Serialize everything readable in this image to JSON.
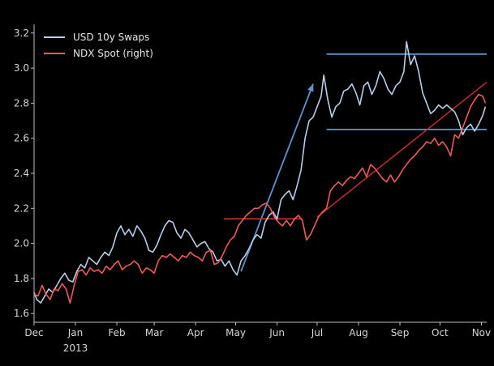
{
  "chart_data": {
    "type": "line",
    "title": "",
    "xlabel": "",
    "ylabel": "",
    "ylim": [
      1.55,
      3.25
    ],
    "xlim": [
      "2012-12-01",
      "2013-11-05"
    ],
    "grid": false,
    "legend_position": "top-left",
    "colors": {
      "background": "#000000",
      "axes": "#bfbfbf",
      "usd": "#b8cde8",
      "ndx": "#ef5a5a",
      "annotation_blue": "#5d95c8",
      "annotation_red": "#c42d2d"
    },
    "y_ticks": [
      "1.6",
      "1.8",
      "2.0",
      "2.2",
      "2.4",
      "2.6",
      "2.8",
      "3.0",
      "3.2"
    ],
    "x_ticks": [
      {
        "date": "2012-12-01",
        "label": "Dec",
        "sublabel": ""
      },
      {
        "date": "2013-01-01",
        "label": "Jan",
        "sublabel": "2013"
      },
      {
        "date": "2013-02-01",
        "label": "Feb",
        "sublabel": ""
      },
      {
        "date": "2013-03-01",
        "label": "Mar",
        "sublabel": ""
      },
      {
        "date": "2013-04-01",
        "label": "Apr",
        "sublabel": ""
      },
      {
        "date": "2013-05-01",
        "label": "May",
        "sublabel": ""
      },
      {
        "date": "2013-06-01",
        "label": "Jun",
        "sublabel": ""
      },
      {
        "date": "2013-07-01",
        "label": "Jul",
        "sublabel": ""
      },
      {
        "date": "2013-08-01",
        "label": "Aug",
        "sublabel": ""
      },
      {
        "date": "2013-09-01",
        "label": "Sep",
        "sublabel": ""
      },
      {
        "date": "2013-10-01",
        "label": "Oct",
        "sublabel": ""
      },
      {
        "date": "2013-11-01",
        "label": "Nov",
        "sublabel": ""
      }
    ],
    "series": [
      {
        "name": "USD 10y Swaps",
        "color": "#b8cde8",
        "points": [
          [
            "2012-12-01",
            1.72
          ],
          [
            "2012-12-03",
            1.68
          ],
          [
            "2012-12-06",
            1.66
          ],
          [
            "2012-12-09",
            1.7
          ],
          [
            "2012-12-12",
            1.74
          ],
          [
            "2012-12-15",
            1.72
          ],
          [
            "2012-12-18",
            1.76
          ],
          [
            "2012-12-21",
            1.8
          ],
          [
            "2012-12-24",
            1.83
          ],
          [
            "2012-12-27",
            1.79
          ],
          [
            "2012-12-30",
            1.78
          ],
          [
            "2013-01-02",
            1.84
          ],
          [
            "2013-01-05",
            1.88
          ],
          [
            "2013-01-08",
            1.86
          ],
          [
            "2013-01-11",
            1.92
          ],
          [
            "2013-01-14",
            1.9
          ],
          [
            "2013-01-17",
            1.88
          ],
          [
            "2013-01-20",
            1.92
          ],
          [
            "2013-01-23",
            1.95
          ],
          [
            "2013-01-26",
            1.93
          ],
          [
            "2013-01-29",
            1.98
          ],
          [
            "2013-02-01",
            2.06
          ],
          [
            "2013-02-04",
            2.1
          ],
          [
            "2013-02-07",
            2.05
          ],
          [
            "2013-02-10",
            2.08
          ],
          [
            "2013-02-13",
            2.04
          ],
          [
            "2013-02-16",
            2.1
          ],
          [
            "2013-02-19",
            2.07
          ],
          [
            "2013-02-22",
            2.03
          ],
          [
            "2013-02-25",
            1.96
          ],
          [
            "2013-02-28",
            1.95
          ],
          [
            "2013-03-03",
            1.99
          ],
          [
            "2013-03-06",
            2.05
          ],
          [
            "2013-03-09",
            2.1
          ],
          [
            "2013-03-12",
            2.13
          ],
          [
            "2013-03-15",
            2.12
          ],
          [
            "2013-03-18",
            2.06
          ],
          [
            "2013-03-21",
            2.03
          ],
          [
            "2013-03-24",
            2.08
          ],
          [
            "2013-03-27",
            2.06
          ],
          [
            "2013-03-30",
            2.02
          ],
          [
            "2013-04-02",
            1.98
          ],
          [
            "2013-04-05",
            2.0
          ],
          [
            "2013-04-08",
            2.01
          ],
          [
            "2013-04-11",
            1.97
          ],
          [
            "2013-04-14",
            1.95
          ],
          [
            "2013-04-17",
            1.9
          ],
          [
            "2013-04-20",
            1.91
          ],
          [
            "2013-04-23",
            1.87
          ],
          [
            "2013-04-26",
            1.9
          ],
          [
            "2013-04-29",
            1.85
          ],
          [
            "2013-05-02",
            1.82
          ],
          [
            "2013-05-05",
            1.9
          ],
          [
            "2013-05-08",
            1.93
          ],
          [
            "2013-05-11",
            1.97
          ],
          [
            "2013-05-14",
            2.02
          ],
          [
            "2013-05-17",
            2.05
          ],
          [
            "2013-05-20",
            2.03
          ],
          [
            "2013-05-23",
            2.12
          ],
          [
            "2013-05-26",
            2.16
          ],
          [
            "2013-05-29",
            2.18
          ],
          [
            "2013-06-01",
            2.14
          ],
          [
            "2013-06-04",
            2.25
          ],
          [
            "2013-06-07",
            2.28
          ],
          [
            "2013-06-10",
            2.3
          ],
          [
            "2013-06-13",
            2.25
          ],
          [
            "2013-06-16",
            2.33
          ],
          [
            "2013-06-19",
            2.42
          ],
          [
            "2013-06-22",
            2.6
          ],
          [
            "2013-06-25",
            2.7
          ],
          [
            "2013-06-28",
            2.72
          ],
          [
            "2013-07-01",
            2.78
          ],
          [
            "2013-07-04",
            2.84
          ],
          [
            "2013-07-06",
            2.96
          ],
          [
            "2013-07-09",
            2.82
          ],
          [
            "2013-07-12",
            2.72
          ],
          [
            "2013-07-15",
            2.78
          ],
          [
            "2013-07-18",
            2.8
          ],
          [
            "2013-07-21",
            2.87
          ],
          [
            "2013-07-24",
            2.88
          ],
          [
            "2013-07-27",
            2.91
          ],
          [
            "2013-07-30",
            2.86
          ],
          [
            "2013-08-02",
            2.79
          ],
          [
            "2013-08-05",
            2.9
          ],
          [
            "2013-08-08",
            2.92
          ],
          [
            "2013-08-11",
            2.85
          ],
          [
            "2013-08-14",
            2.9
          ],
          [
            "2013-08-17",
            2.98
          ],
          [
            "2013-08-20",
            2.94
          ],
          [
            "2013-08-23",
            2.88
          ],
          [
            "2013-08-26",
            2.85
          ],
          [
            "2013-08-29",
            2.9
          ],
          [
            "2013-09-01",
            2.92
          ],
          [
            "2013-09-04",
            2.98
          ],
          [
            "2013-09-06",
            3.15
          ],
          [
            "2013-09-09",
            3.02
          ],
          [
            "2013-09-12",
            3.07
          ],
          [
            "2013-09-15",
            2.98
          ],
          [
            "2013-09-18",
            2.86
          ],
          [
            "2013-09-21",
            2.8
          ],
          [
            "2013-09-24",
            2.74
          ],
          [
            "2013-09-27",
            2.76
          ],
          [
            "2013-09-30",
            2.79
          ],
          [
            "2013-10-03",
            2.77
          ],
          [
            "2013-10-06",
            2.79
          ],
          [
            "2013-10-09",
            2.77
          ],
          [
            "2013-10-12",
            2.75
          ],
          [
            "2013-10-15",
            2.7
          ],
          [
            "2013-10-18",
            2.62
          ],
          [
            "2013-10-21",
            2.66
          ],
          [
            "2013-10-24",
            2.68
          ],
          [
            "2013-10-27",
            2.64
          ],
          [
            "2013-10-30",
            2.68
          ],
          [
            "2013-11-02",
            2.73
          ],
          [
            "2013-11-04",
            2.78
          ]
        ]
      },
      {
        "name": "NDX Spot (right)",
        "color": "#ef5a5a",
        "points": [
          [
            "2012-12-01",
            1.71
          ],
          [
            "2012-12-04",
            1.7
          ],
          [
            "2012-12-07",
            1.76
          ],
          [
            "2012-12-10",
            1.71
          ],
          [
            "2012-12-13",
            1.68
          ],
          [
            "2012-12-16",
            1.74
          ],
          [
            "2012-12-19",
            1.73
          ],
          [
            "2012-12-22",
            1.77
          ],
          [
            "2012-12-25",
            1.74
          ],
          [
            "2012-12-28",
            1.66
          ],
          [
            "2012-12-31",
            1.76
          ],
          [
            "2013-01-03",
            1.84
          ],
          [
            "2013-01-06",
            1.85
          ],
          [
            "2013-01-09",
            1.82
          ],
          [
            "2013-01-12",
            1.86
          ],
          [
            "2013-01-15",
            1.84
          ],
          [
            "2013-01-18",
            1.85
          ],
          [
            "2013-01-21",
            1.83
          ],
          [
            "2013-01-24",
            1.87
          ],
          [
            "2013-01-27",
            1.85
          ],
          [
            "2013-01-30",
            1.88
          ],
          [
            "2013-02-02",
            1.9
          ],
          [
            "2013-02-05",
            1.85
          ],
          [
            "2013-02-08",
            1.87
          ],
          [
            "2013-02-11",
            1.88
          ],
          [
            "2013-02-14",
            1.9
          ],
          [
            "2013-02-17",
            1.88
          ],
          [
            "2013-02-20",
            1.83
          ],
          [
            "2013-02-23",
            1.86
          ],
          [
            "2013-02-26",
            1.85
          ],
          [
            "2013-03-01",
            1.83
          ],
          [
            "2013-03-04",
            1.9
          ],
          [
            "2013-03-07",
            1.93
          ],
          [
            "2013-03-10",
            1.92
          ],
          [
            "2013-03-13",
            1.94
          ],
          [
            "2013-03-16",
            1.92
          ],
          [
            "2013-03-19",
            1.9
          ],
          [
            "2013-03-22",
            1.93
          ],
          [
            "2013-03-25",
            1.92
          ],
          [
            "2013-03-28",
            1.95
          ],
          [
            "2013-03-31",
            1.93
          ],
          [
            "2013-04-03",
            1.92
          ],
          [
            "2013-04-06",
            1.9
          ],
          [
            "2013-04-09",
            1.95
          ],
          [
            "2013-04-12",
            1.96
          ],
          [
            "2013-04-15",
            1.88
          ],
          [
            "2013-04-18",
            1.89
          ],
          [
            "2013-04-21",
            1.93
          ],
          [
            "2013-04-24",
            1.98
          ],
          [
            "2013-04-27",
            2.02
          ],
          [
            "2013-04-30",
            2.04
          ],
          [
            "2013-05-03",
            2.1
          ],
          [
            "2013-05-06",
            2.13
          ],
          [
            "2013-05-09",
            2.16
          ],
          [
            "2013-05-12",
            2.18
          ],
          [
            "2013-05-15",
            2.2
          ],
          [
            "2013-05-18",
            2.2
          ],
          [
            "2013-05-21",
            2.22
          ],
          [
            "2013-05-24",
            2.23
          ],
          [
            "2013-05-27",
            2.2
          ],
          [
            "2013-05-30",
            2.15
          ],
          [
            "2013-06-02",
            2.12
          ],
          [
            "2013-06-05",
            2.1
          ],
          [
            "2013-06-08",
            2.13
          ],
          [
            "2013-06-11",
            2.1
          ],
          [
            "2013-06-14",
            2.14
          ],
          [
            "2013-06-17",
            2.16
          ],
          [
            "2013-06-20",
            2.13
          ],
          [
            "2013-06-23",
            2.02
          ],
          [
            "2013-06-26",
            2.05
          ],
          [
            "2013-06-29",
            2.1
          ],
          [
            "2013-07-02",
            2.15
          ],
          [
            "2013-07-05",
            2.18
          ],
          [
            "2013-07-08",
            2.2
          ],
          [
            "2013-07-11",
            2.3
          ],
          [
            "2013-07-14",
            2.33
          ],
          [
            "2013-07-17",
            2.35
          ],
          [
            "2013-07-20",
            2.33
          ],
          [
            "2013-07-23",
            2.36
          ],
          [
            "2013-07-26",
            2.38
          ],
          [
            "2013-07-29",
            2.37
          ],
          [
            "2013-08-01",
            2.4
          ],
          [
            "2013-08-04",
            2.43
          ],
          [
            "2013-08-07",
            2.38
          ],
          [
            "2013-08-10",
            2.45
          ],
          [
            "2013-08-13",
            2.43
          ],
          [
            "2013-08-16",
            2.4
          ],
          [
            "2013-08-19",
            2.37
          ],
          [
            "2013-08-22",
            2.35
          ],
          [
            "2013-08-25",
            2.39
          ],
          [
            "2013-08-28",
            2.35
          ],
          [
            "2013-08-31",
            2.38
          ],
          [
            "2013-09-03",
            2.42
          ],
          [
            "2013-09-06",
            2.45
          ],
          [
            "2013-09-09",
            2.48
          ],
          [
            "2013-09-12",
            2.5
          ],
          [
            "2013-09-15",
            2.53
          ],
          [
            "2013-09-18",
            2.55
          ],
          [
            "2013-09-21",
            2.58
          ],
          [
            "2013-09-24",
            2.57
          ],
          [
            "2013-09-27",
            2.6
          ],
          [
            "2013-09-30",
            2.56
          ],
          [
            "2013-10-03",
            2.58
          ],
          [
            "2013-10-06",
            2.55
          ],
          [
            "2013-10-09",
            2.5
          ],
          [
            "2013-10-12",
            2.62
          ],
          [
            "2013-10-15",
            2.6
          ],
          [
            "2013-10-18",
            2.66
          ],
          [
            "2013-10-21",
            2.72
          ],
          [
            "2013-10-24",
            2.78
          ],
          [
            "2013-10-27",
            2.82
          ],
          [
            "2013-10-30",
            2.85
          ],
          [
            "2013-11-02",
            2.84
          ],
          [
            "2013-11-04",
            2.8
          ]
        ]
      }
    ],
    "annotations": [
      {
        "kind": "hline",
        "color": "#5d95c8",
        "y": 3.08,
        "x_start": "2013-07-08",
        "x_end": "2013-11-05"
      },
      {
        "kind": "hline",
        "color": "#5d95c8",
        "y": 2.65,
        "x_start": "2013-07-08",
        "x_end": "2013-11-05"
      },
      {
        "kind": "arrow",
        "color": "#5d95c8",
        "x_start": "2013-05-05",
        "y_start": 1.84,
        "x_end": "2013-06-28",
        "y_end": 2.91
      },
      {
        "kind": "hline",
        "color": "#c42d2d",
        "y": 2.14,
        "x_start": "2013-04-22",
        "x_end": "2013-06-20"
      },
      {
        "kind": "line",
        "color": "#c42d2d",
        "x_start": "2013-07-01",
        "y_start": 2.15,
        "x_end": "2013-11-05",
        "y_end": 2.92
      }
    ]
  }
}
